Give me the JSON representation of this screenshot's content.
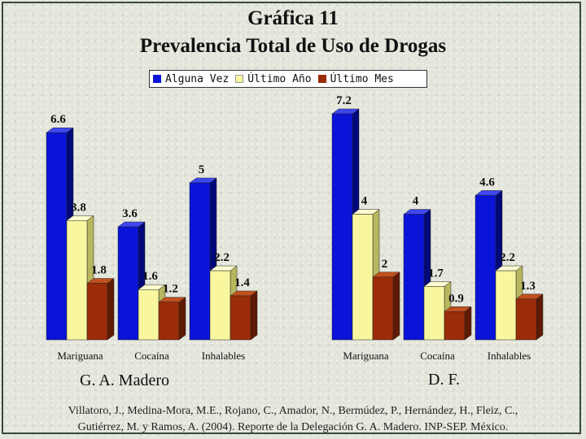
{
  "chart_data": {
    "type": "bar",
    "title": "Gráfica 11",
    "subtitle": "Prevalencia Total de Uso de Drogas",
    "legend": [
      "Alguna Vez",
      "Último Año",
      "Último Mes"
    ],
    "legend_placement": "top",
    "grid": false,
    "colors": [
      "#0a14d8",
      "#f8f7a0",
      "#9a2c08"
    ],
    "groups": [
      {
        "name": "G. A. Madero",
        "categories": [
          "Mariguana",
          "Cocaína",
          "Inhalables"
        ],
        "series": [
          {
            "name": "Alguna Vez",
            "values": [
              6.6,
              3.6,
              5
            ]
          },
          {
            "name": "Último Año",
            "values": [
              3.8,
              1.6,
              2.2
            ]
          },
          {
            "name": "Último Mes",
            "values": [
              1.8,
              1.2,
              1.4
            ]
          }
        ]
      },
      {
        "name": "D. F.",
        "categories": [
          "Mariguana",
          "Cocaína",
          "Inhalables"
        ],
        "series": [
          {
            "name": "Alguna Vez",
            "values": [
              7.2,
              4,
              4.6
            ]
          },
          {
            "name": "Último Año",
            "values": [
              4,
              1.7,
              2.2
            ]
          },
          {
            "name": "Último Mes",
            "values": [
              2,
              0.9,
              1.3
            ]
          }
        ]
      }
    ],
    "ylim": [
      0,
      7.2
    ]
  },
  "footer": {
    "source_line1": "Villatoro, J., Medina-Mora, M.E., Rojano, C., Amador, N., Bermúdez, P., Hernández, H., Fleiz, C.,",
    "source_line2": "Gutiérrez, M. y Ramos, A. (2004). Reporte de la Delegación G. A. Madero. INP-SEP. México."
  }
}
